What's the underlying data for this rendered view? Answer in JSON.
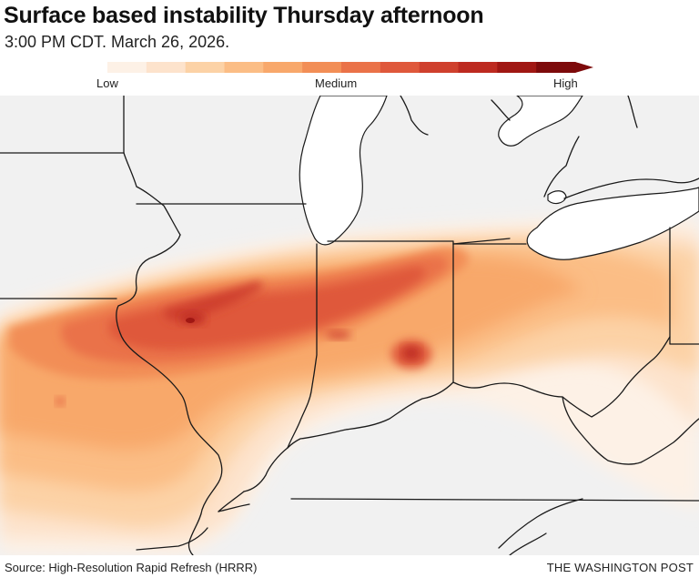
{
  "header": {
    "title": "Surface based instability Thursday afternoon",
    "subtitle": "3:00 PM CDT. March 26, 2026."
  },
  "legend": {
    "low_label": "Low",
    "medium_label": "Medium",
    "high_label": "High",
    "colors": [
      "#fdf1e6",
      "#fde3cc",
      "#fcd2a6",
      "#fbbd85",
      "#f8a86b",
      "#f28e56",
      "#ea7248",
      "#df583b",
      "#cf402d",
      "#bd2a20",
      "#a01713",
      "#7d0a0b"
    ]
  },
  "map": {
    "background_color": "#f1f1f1",
    "water_color": "#ffffff",
    "border_color": "#1a1a1a"
  },
  "footer": {
    "source": "Source: High-Resolution Rapid Refresh (HRRR)",
    "brand": "THE WASHINGTON POST"
  }
}
